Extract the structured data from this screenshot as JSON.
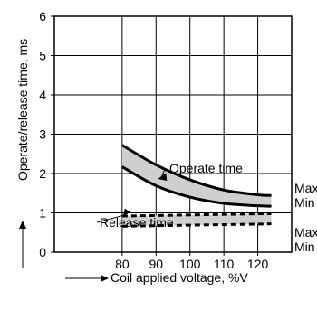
{
  "chart_data": {
    "type": "area",
    "xlabel": "Coil applied voltage, %V",
    "ylabel": "Operate/release time, ms",
    "xlim": [
      60,
      130
    ],
    "ylim": [
      0,
      6
    ],
    "x_ticks": [
      80,
      90,
      100,
      110,
      120
    ],
    "y_ticks": [
      0,
      1,
      2,
      3,
      4,
      5,
      6
    ],
    "grid": true,
    "series": [
      {
        "name": "Operate time",
        "line_style": "solid",
        "max": {
          "x": [
            80,
            90,
            100,
            110,
            120,
            124
          ],
          "y": [
            2.72,
            2.22,
            1.84,
            1.58,
            1.46,
            1.44
          ]
        },
        "min": {
          "x": [
            80,
            90,
            100,
            110,
            120,
            124
          ],
          "y": [
            2.17,
            1.69,
            1.4,
            1.24,
            1.18,
            1.17
          ]
        }
      },
      {
        "name": "Release time",
        "line_style": "dashed",
        "max": {
          "x": [
            80,
            124
          ],
          "y": [
            0.92,
            0.98
          ]
        },
        "min": {
          "x": [
            80,
            124
          ],
          "y": [
            0.66,
            0.72
          ]
        }
      }
    ],
    "annotations": {
      "operate": "Operate time",
      "release": "Release time",
      "max1": "Max",
      "min1": "Min",
      "max2": "Max",
      "min2": "Min"
    }
  }
}
